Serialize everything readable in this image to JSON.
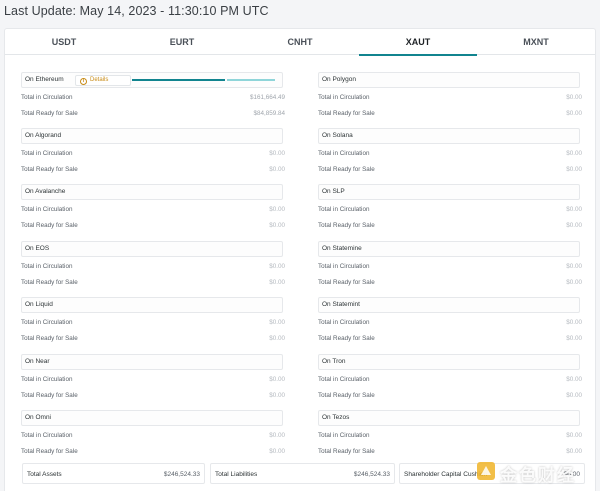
{
  "last_update": "Last Update: May 14, 2023 - 11:30:10 PM UTC",
  "tabs": [
    {
      "label": "USDT"
    },
    {
      "label": "EURT"
    },
    {
      "label": "CNHT"
    },
    {
      "label": "XAUT",
      "active": true
    },
    {
      "label": "MXNT"
    }
  ],
  "row_labels": {
    "circulation": "Total in Circulation",
    "ready": "Total Ready for Sale"
  },
  "details_label": "Details",
  "chains_left": [
    {
      "name": "On Ethereum",
      "circulation": "$161,664.49",
      "ready": "$84,859.84"
    },
    {
      "name": "On Algorand",
      "circulation": "$0.00",
      "ready": "$0.00"
    },
    {
      "name": "On Avalanche",
      "circulation": "$0.00",
      "ready": "$0.00"
    },
    {
      "name": "On EOS",
      "circulation": "$0.00",
      "ready": "$0.00"
    },
    {
      "name": "On Liquid",
      "circulation": "$0.00",
      "ready": "$0.00"
    },
    {
      "name": "On Near",
      "circulation": "$0.00",
      "ready": "$0.00"
    },
    {
      "name": "On Omni",
      "circulation": "$0.00",
      "ready": "$0.00"
    }
  ],
  "chains_right": [
    {
      "name": "On Polygon",
      "circulation": "$0.00",
      "ready": "$0.00"
    },
    {
      "name": "On Solana",
      "circulation": "$0.00",
      "ready": "$0.00"
    },
    {
      "name": "On SLP",
      "circulation": "$0.00",
      "ready": "$0.00"
    },
    {
      "name": "On Statemine",
      "circulation": "$0.00",
      "ready": "$0.00"
    },
    {
      "name": "On Statemint",
      "circulation": "$0.00",
      "ready": "$0.00"
    },
    {
      "name": "On Tron",
      "circulation": "$0.00",
      "ready": "$0.00"
    },
    {
      "name": "On Tezos",
      "circulation": "$0.00",
      "ready": "$0.00"
    }
  ],
  "totals": {
    "assets_label": "Total Assets",
    "assets_value": "$246,524.33",
    "liabilities_label": "Total Liabilities",
    "liabilities_value": "$246,524.33",
    "shareholder_label": "Shareholder Capital Cushion",
    "shareholder_value": "$0.00"
  },
  "colors": {
    "accent": "#11848f",
    "accent_light": "#8fd5d9",
    "details": "#c88b16"
  },
  "watermark_text": "金色财经"
}
